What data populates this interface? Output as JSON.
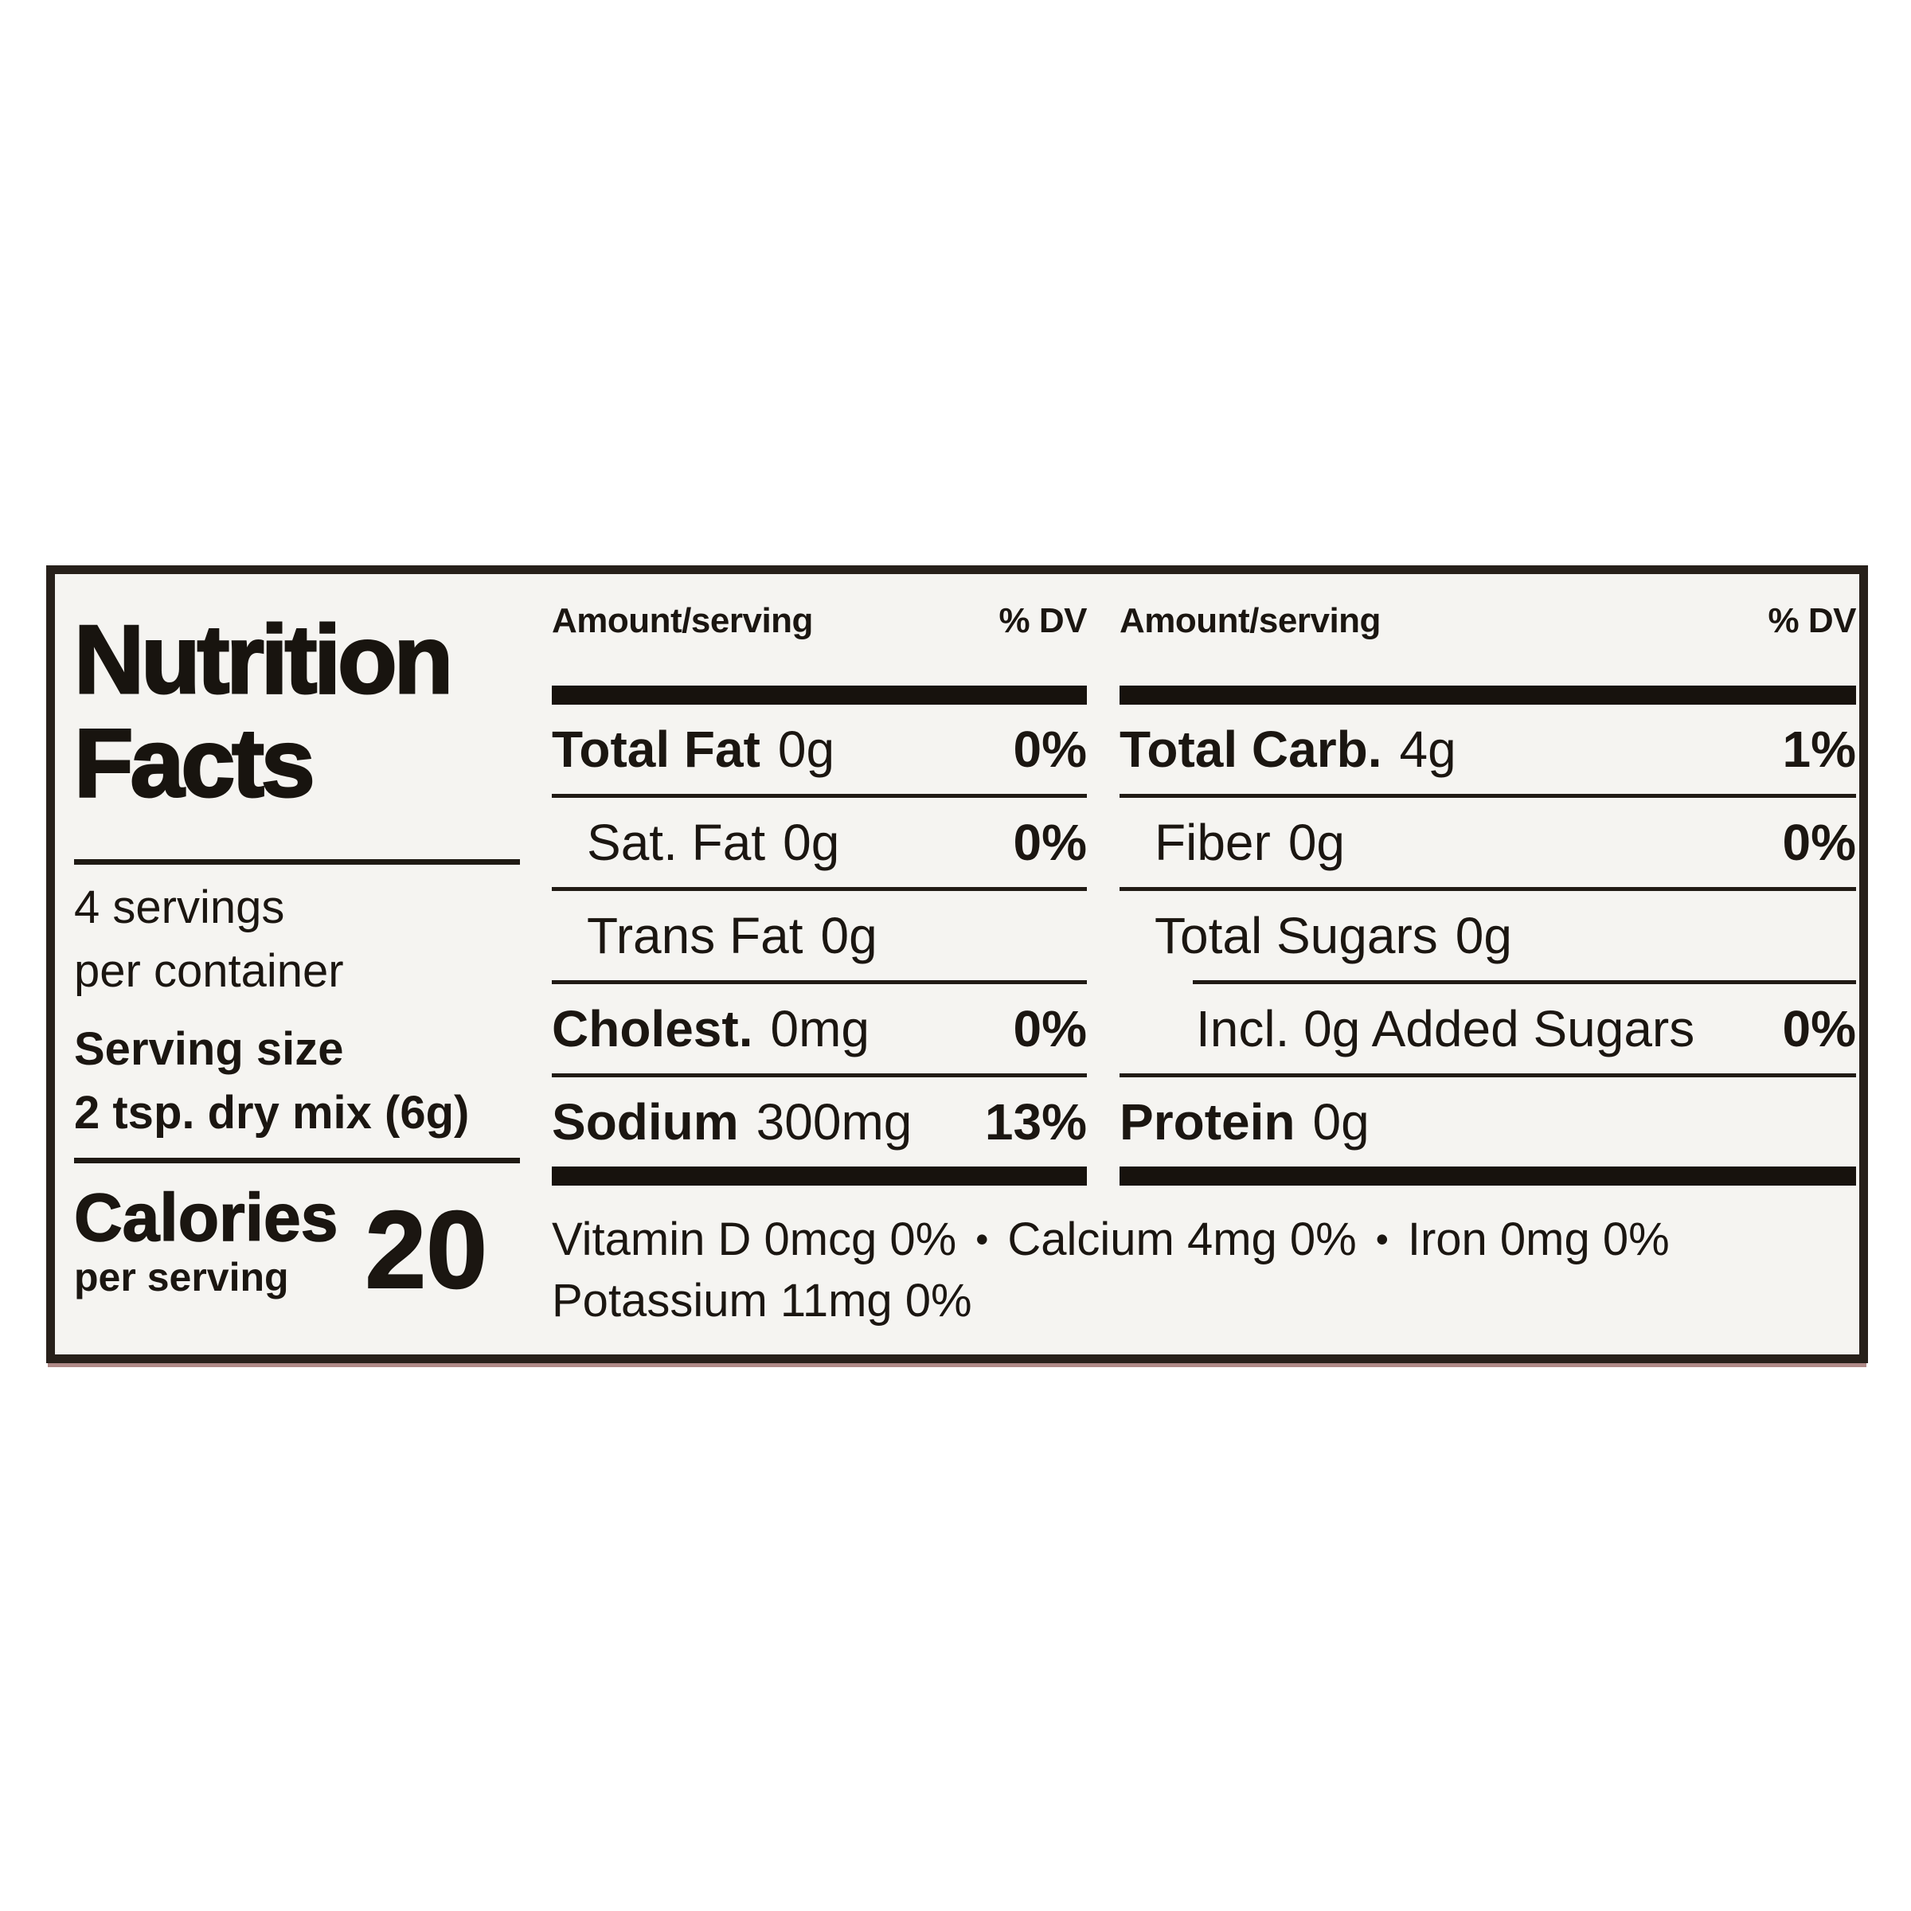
{
  "label": {
    "colors": {
      "background": "#f5f4f1",
      "border": "#27201a",
      "text": "#1b1611",
      "bottom_edge_tint": "#601410"
    },
    "title_line1": "Nutrition",
    "title_line2": "Facts",
    "servings_line1": "4 servings",
    "servings_line2": "per container",
    "serving_size_label": "Serving size",
    "serving_size_value": "2 tsp. dry mix (6g)",
    "calories_label": "Calories",
    "calories_sublabel": "per serving",
    "calories_value": "20",
    "bullet": "•",
    "columns": [
      {
        "header_amount": "Amount/serving",
        "header_dv": "% DV",
        "rows": [
          {
            "name": "Total Fat",
            "amount": "0g",
            "dv": "0%"
          },
          {
            "name": "Sat. Fat",
            "amount": "0g",
            "dv": "0%"
          },
          {
            "name": "Trans Fat",
            "amount": "0g",
            "dv": ""
          },
          {
            "name": "Cholest.",
            "amount": "0mg",
            "dv": "0%"
          },
          {
            "name": "Sodium",
            "amount": "300mg",
            "dv": "13%"
          }
        ]
      },
      {
        "header_amount": "Amount/serving",
        "header_dv": "% DV",
        "rows": [
          {
            "name": "Total Carb.",
            "amount": "4g",
            "dv": "1%"
          },
          {
            "name": "Fiber",
            "amount": "0g",
            "dv": "0%"
          },
          {
            "name": "Total Sugars",
            "amount": "0g",
            "dv": ""
          },
          {
            "name": "Incl. 0g Added Sugars",
            "amount": "",
            "dv": "0%"
          },
          {
            "name": "Protein",
            "amount": "0g",
            "dv": ""
          }
        ]
      }
    ],
    "micronutrients": {
      "line1": [
        "Vitamin D 0mcg 0%",
        "Calcium 4mg 0%",
        "Iron 0mg 0%"
      ],
      "line2": "Potassium 11mg 0%"
    }
  }
}
